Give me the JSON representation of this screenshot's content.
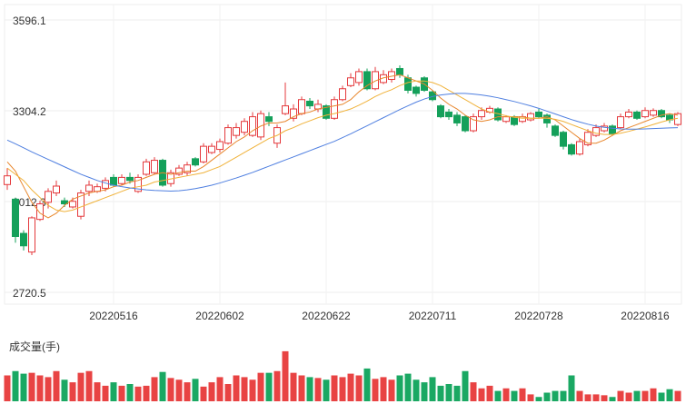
{
  "chart_data": {
    "type": "candlestick",
    "categories": [
      null,
      null,
      null,
      null,
      null,
      null,
      null,
      null,
      null,
      null,
      null,
      null,
      null,
      "20220516",
      null,
      null,
      null,
      null,
      null,
      null,
      null,
      null,
      null,
      null,
      null,
      null,
      "20220602",
      null,
      null,
      null,
      null,
      null,
      null,
      null,
      null,
      null,
      null,
      null,
      null,
      "20220622",
      null,
      null,
      null,
      null,
      null,
      null,
      null,
      null,
      null,
      null,
      null,
      null,
      "20220711",
      null,
      null,
      null,
      null,
      null,
      null,
      null,
      null,
      null,
      null,
      null,
      null,
      "20220728",
      null,
      null,
      null,
      null,
      null,
      null,
      null,
      null,
      null,
      null,
      null,
      null,
      "20220816",
      null,
      null,
      null,
      null
    ],
    "open": [
      3067,
      3020,
      2910,
      2850,
      2955,
      3010,
      3040,
      3015,
      2995,
      2965,
      3045,
      3045,
      3055,
      3090,
      3070,
      3090,
      3045,
      3100,
      3105,
      3145,
      3070,
      3100,
      3105,
      3150,
      3140,
      3170,
      3180,
      3200,
      3225,
      3235,
      3225,
      3220,
      3285,
      3200,
      3295,
      3280,
      3295,
      3335,
      3310,
      3320,
      3280,
      3340,
      3385,
      3395,
      3430,
      3375,
      3395,
      3405,
      3440,
      3410,
      3380,
      3410,
      3365,
      3320,
      3300,
      3290,
      3285,
      3240,
      3285,
      3300,
      3310,
      3270,
      3285,
      3270,
      3275,
      3300,
      3290,
      3255,
      3235,
      3195,
      3165,
      3195,
      3225,
      3240,
      3255,
      3250,
      3285,
      3300,
      3285,
      3290,
      3305,
      3290,
      3260
    ],
    "high": [
      3120,
      3025,
      2920,
      2965,
      3015,
      3055,
      3080,
      3025,
      3025,
      3050,
      3080,
      3070,
      3090,
      3100,
      3100,
      3105,
      3100,
      3150,
      3155,
      3150,
      3115,
      3130,
      3140,
      3155,
      3200,
      3200,
      3215,
      3260,
      3265,
      3280,
      3300,
      3305,
      3300,
      3260,
      3395,
      3325,
      3350,
      3345,
      3340,
      3325,
      3350,
      3385,
      3425,
      3440,
      3440,
      3445,
      3435,
      3440,
      3450,
      3420,
      3385,
      3415,
      3370,
      3325,
      3310,
      3300,
      3290,
      3295,
      3315,
      3320,
      3315,
      3290,
      3290,
      3295,
      3300,
      3310,
      3295,
      3260,
      3240,
      3200,
      3215,
      3245,
      3260,
      3265,
      3260,
      3295,
      3310,
      3305,
      3315,
      3312,
      3310,
      3295,
      3300
    ],
    "low": [
      3050,
      2880,
      2855,
      2840,
      2950,
      2990,
      3030,
      2995,
      2990,
      2955,
      3030,
      3040,
      3045,
      3060,
      3065,
      3070,
      3040,
      3095,
      3100,
      3060,
      3060,
      3095,
      3095,
      3125,
      3135,
      3165,
      3170,
      3195,
      3215,
      3225,
      3220,
      3210,
      3255,
      3185,
      3290,
      3270,
      3290,
      3310,
      3300,
      3275,
      3275,
      3335,
      3380,
      3385,
      3370,
      3370,
      3390,
      3395,
      3410,
      3360,
      3350,
      3365,
      3335,
      3280,
      3275,
      3255,
      3235,
      3235,
      3275,
      3295,
      3270,
      3265,
      3255,
      3265,
      3270,
      3280,
      3250,
      3220,
      3180,
      3160,
      3160,
      3190,
      3220,
      3235,
      3225,
      3245,
      3280,
      3275,
      3280,
      3285,
      3280,
      3265,
      3255
    ],
    "close": [
      3095,
      2900,
      2870,
      2960,
      3005,
      3045,
      3062,
      3005,
      3013,
      3040,
      3065,
      3060,
      3080,
      3065,
      3090,
      3080,
      3090,
      3140,
      3145,
      3065,
      3105,
      3120,
      3130,
      3130,
      3190,
      3190,
      3205,
      3250,
      3250,
      3270,
      3285,
      3295,
      3270,
      3250,
      3320,
      3310,
      3340,
      3320,
      3325,
      3280,
      3340,
      3375,
      3410,
      3430,
      3375,
      3430,
      3420,
      3430,
      3420,
      3370,
      3360,
      3370,
      3340,
      3285,
      3285,
      3265,
      3240,
      3285,
      3305,
      3312,
      3275,
      3285,
      3260,
      3285,
      3295,
      3285,
      3265,
      3225,
      3190,
      3165,
      3205,
      3235,
      3250,
      3255,
      3230,
      3285,
      3300,
      3280,
      3305,
      3305,
      3285,
      3275,
      3295
    ],
    "up_color": "#e4393c",
    "down_color": "#14a05a",
    "lines": [
      {
        "color": "#e8862c",
        "values": [
          3140,
          3110,
          3060,
          3010,
          2975,
          2960,
          2975,
          3000,
          3020,
          3030,
          3040,
          3045,
          3050,
          3060,
          3065,
          3075,
          3080,
          3090,
          3100,
          3105,
          3100,
          3105,
          3110,
          3110,
          3125,
          3145,
          3165,
          3185,
          3205,
          3220,
          3240,
          3255,
          3265,
          3265,
          3270,
          3285,
          3295,
          3300,
          3310,
          3315,
          3320,
          3325,
          3340,
          3365,
          3385,
          3400,
          3410,
          3415,
          3420,
          3410,
          3400,
          3390,
          3370,
          3345,
          3325,
          3310,
          3290,
          3275,
          3270,
          3275,
          3285,
          3285,
          3285,
          3285,
          3280,
          3280,
          3285,
          3275,
          3255,
          3235,
          3215,
          3200,
          3200,
          3210,
          3225,
          3240,
          3250,
          3260,
          3270,
          3280,
          3290,
          3295,
          3290
        ]
      },
      {
        "color": "#f0b23a",
        "values": [
          3120,
          3100,
          3080,
          3050,
          3025,
          3000,
          2985,
          2980,
          2985,
          2995,
          3005,
          3015,
          3025,
          3035,
          3045,
          3055,
          3060,
          3065,
          3075,
          3080,
          3085,
          3090,
          3095,
          3100,
          3105,
          3115,
          3125,
          3140,
          3155,
          3170,
          3185,
          3200,
          3215,
          3225,
          3240,
          3250,
          3262,
          3272,
          3282,
          3290,
          3295,
          3302,
          3310,
          3322,
          3335,
          3350,
          3362,
          3372,
          3385,
          3395,
          3400,
          3400,
          3395,
          3385,
          3370,
          3355,
          3340,
          3325,
          3310,
          3300,
          3295,
          3288,
          3283,
          3280,
          3280,
          3280,
          3280,
          3277,
          3270,
          3260,
          3250,
          3240,
          3232,
          3228,
          3228,
          3232,
          3238,
          3245,
          3252,
          3260,
          3268,
          3275,
          3280
        ]
      },
      {
        "color": "#4f7fe0",
        "values": [
          3210,
          3198,
          3185,
          3172,
          3160,
          3148,
          3136,
          3124,
          3112,
          3100,
          3090,
          3080,
          3072,
          3065,
          3060,
          3056,
          3053,
          3050,
          3048,
          3047,
          3046,
          3047,
          3050,
          3054,
          3059,
          3065,
          3072,
          3080,
          3088,
          3097,
          3106,
          3116,
          3126,
          3136,
          3146,
          3156,
          3166,
          3176,
          3186,
          3196,
          3206,
          3218,
          3230,
          3243,
          3256,
          3269,
          3282,
          3295,
          3308,
          3320,
          3332,
          3342,
          3350,
          3355,
          3358,
          3360,
          3360,
          3358,
          3355,
          3351,
          3346,
          3340,
          3334,
          3327,
          3320,
          3312,
          3303,
          3294,
          3285,
          3276,
          3268,
          3261,
          3255,
          3251,
          3248,
          3246,
          3245,
          3245,
          3246,
          3247,
          3248,
          3249,
          3250
        ]
      }
    ],
    "ylim": [
      2720.5,
      3596.1
    ],
    "yticks": [
      3596.1,
      3304.2,
      3012.3,
      2720.5
    ],
    "grid": true,
    "volume": {
      "label": "成交量(手)",
      "ylim": [
        0,
        60
      ],
      "values": [
        30,
        35,
        32,
        33,
        30,
        28,
        35,
        25,
        22,
        33,
        35,
        22,
        18,
        22,
        18,
        20,
        17,
        18,
        28,
        34,
        27,
        25,
        22,
        26,
        17,
        22,
        28,
        20,
        30,
        28,
        25,
        33,
        33,
        35,
        58,
        33,
        30,
        28,
        27,
        25,
        30,
        28,
        32,
        30,
        38,
        26,
        28,
        25,
        30,
        32,
        25,
        22,
        28,
        18,
        20,
        18,
        35,
        22,
        15,
        18,
        12,
        15,
        12,
        15,
        8,
        5,
        10,
        12,
        12,
        30,
        12,
        8,
        8,
        7,
        5,
        12,
        10,
        12,
        12,
        15,
        10,
        14,
        12
      ]
    }
  }
}
